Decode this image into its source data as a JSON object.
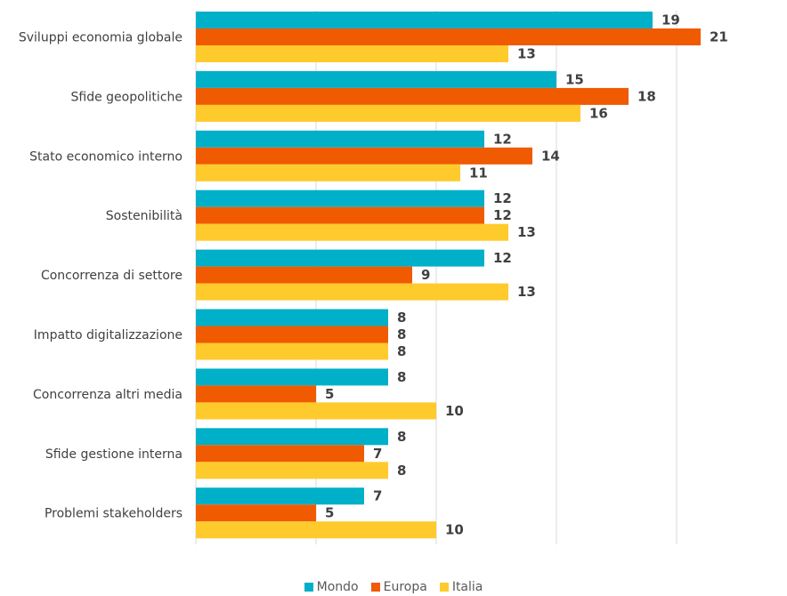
{
  "chart_data": {
    "type": "bar",
    "orientation": "horizontal",
    "categories": [
      "Sviluppi economia globale",
      "Sfide geopolitiche",
      "Stato economico interno",
      "Sostenibilità",
      "Concorrenza di settore",
      "Impatto digitalizzazione",
      "Concorrenza altri media",
      "Sfide gestione interna",
      "Problemi stakeholders"
    ],
    "series": [
      {
        "name": "Mondo",
        "color": "#00b0c8",
        "values": [
          19,
          15,
          12,
          12,
          12,
          8,
          8,
          8,
          7
        ]
      },
      {
        "name": "Europa",
        "color": "#f05a00",
        "values": [
          21,
          18,
          14,
          12,
          9,
          8,
          5,
          7,
          5
        ]
      },
      {
        "name": "Italia",
        "color": "#ffca2c",
        "values": [
          13,
          16,
          11,
          13,
          13,
          8,
          10,
          8,
          10
        ]
      }
    ],
    "xlim": [
      0,
      25
    ],
    "grid": true,
    "legend_position": "bottom"
  }
}
